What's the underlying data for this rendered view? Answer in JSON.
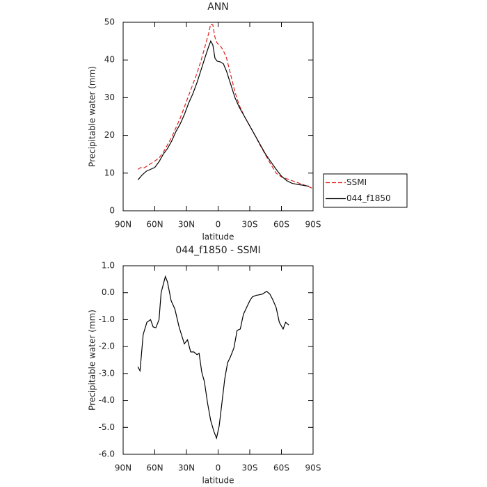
{
  "chart_data": [
    {
      "type": "line",
      "title": "ANN",
      "xlabel": "latitude",
      "ylabel": "Precipitable water (mm)",
      "xlim": [
        90,
        -90
      ],
      "xticks": [
        {
          "value": 90,
          "label": "90N"
        },
        {
          "value": 60,
          "label": "60N"
        },
        {
          "value": 30,
          "label": "30N"
        },
        0,
        {
          "value": -30,
          "label": "30S"
        },
        {
          "value": -60,
          "label": "60S"
        },
        {
          "value": -90,
          "label": "90S"
        }
      ],
      "ylim": [
        0,
        50
      ],
      "yticks": [
        0,
        10,
        20,
        30,
        40,
        50
      ],
      "legend": "right",
      "series": [
        {
          "name": "SSMI",
          "color": "#e0201c",
          "linestyle": "dashed",
          "x": [
            76,
            73,
            70,
            65,
            60,
            56,
            52,
            48,
            44,
            40,
            36,
            32,
            28,
            24,
            20,
            16,
            12,
            9,
            7,
            5,
            3,
            1,
            -2,
            -5,
            -8,
            -12,
            -16,
            -20,
            -25,
            -30,
            -35,
            -40,
            -45,
            -50,
            -55,
            -60,
            -65,
            -70,
            -75,
            -80,
            -85,
            -89
          ],
          "values": [
            11,
            11.5,
            11.4,
            12.3,
            13.2,
            14,
            15.5,
            17.5,
            19.5,
            22,
            24.5,
            27.5,
            30.5,
            33.5,
            36.5,
            40,
            44,
            47,
            49.5,
            49.3,
            46,
            44.5,
            43.8,
            42.5,
            40.5,
            36,
            31.5,
            28,
            25,
            22.5,
            20,
            17.3,
            14.8,
            12.3,
            10,
            9,
            8.5,
            8,
            7.5,
            7,
            6.5,
            6
          ]
        },
        {
          "name": "044_f1850",
          "color": "#000000",
          "linestyle": "solid",
          "x": [
            76,
            72,
            68,
            64,
            60,
            56,
            52,
            48,
            44,
            40,
            36,
            32,
            28,
            24,
            20,
            16,
            12,
            9,
            7,
            5,
            3,
            1,
            -2,
            -5,
            -8,
            -12,
            -16,
            -20,
            -25,
            -30,
            -35,
            -40,
            -45,
            -50,
            -55,
            -60,
            -65,
            -70,
            -75,
            -80,
            -86
          ],
          "values": [
            8.2,
            9.5,
            10.5,
            11,
            11.5,
            13,
            15,
            16.5,
            18.5,
            21,
            23,
            25.5,
            28.5,
            31,
            34,
            37.5,
            41,
            43.5,
            45,
            44,
            40.5,
            39.7,
            39.5,
            39,
            37,
            33.5,
            30,
            27.5,
            25,
            22.5,
            20,
            17.5,
            15,
            13,
            11,
            9.2,
            8,
            7.3,
            7,
            6.8,
            6.5
          ]
        }
      ]
    },
    {
      "type": "line",
      "title": "044_f1850 - SSMI",
      "xlabel": "latitude",
      "ylabel": "Precipitable water (mm)",
      "xlim": [
        90,
        -90
      ],
      "xticks": [
        {
          "value": 90,
          "label": "90N"
        },
        {
          "value": 60,
          "label": "60N"
        },
        {
          "value": 30,
          "label": "30N"
        },
        0,
        {
          "value": -30,
          "label": "30S"
        },
        {
          "value": -60,
          "label": "60S"
        },
        {
          "value": -90,
          "label": "90S"
        }
      ],
      "ylim": [
        -6,
        1
      ],
      "yticks": [
        {
          "value": -6,
          "label": "-6.0"
        },
        {
          "value": -5,
          "label": "-5.0"
        },
        {
          "value": -4,
          "label": "-4.0"
        },
        {
          "value": -3,
          "label": "-3.0"
        },
        {
          "value": -2,
          "label": "-2.0"
        },
        {
          "value": -1,
          "label": "-1.0"
        },
        {
          "value": 0,
          "label": "0.0"
        },
        {
          "value": 1,
          "label": "1.0"
        }
      ],
      "color": "#000000",
      "x": [
        76,
        74,
        71,
        67.5,
        64,
        61.6,
        59,
        56,
        54,
        50,
        48,
        44.5,
        41,
        37,
        32,
        29,
        26,
        23,
        20,
        18,
        15.5,
        13,
        10,
        7,
        4,
        1.5,
        -1,
        -3.6,
        -6.3,
        -9,
        -11.5,
        -15,
        -18,
        -21,
        -24,
        -27,
        -30,
        -32.6,
        -36,
        -38.6,
        -42,
        -46,
        -49,
        -51.7,
        -55,
        -58,
        -61.6,
        -64,
        -67
      ],
      "values": [
        -2.75,
        -2.9,
        -1.55,
        -1.1,
        -1.0,
        -1.27,
        -1.3,
        -1.0,
        0.0,
        0.6,
        0.4,
        -0.3,
        -0.6,
        -1.27,
        -1.9,
        -1.75,
        -2.2,
        -2.2,
        -2.3,
        -2.25,
        -2.95,
        -3.3,
        -4.1,
        -4.75,
        -5.15,
        -5.4,
        -4.95,
        -4.1,
        -3.2,
        -2.6,
        -2.4,
        -2.05,
        -1.4,
        -1.35,
        -0.8,
        -0.55,
        -0.3,
        -0.15,
        -0.1,
        -0.08,
        -0.05,
        0.05,
        -0.05,
        -0.25,
        -0.55,
        -1.1,
        -1.35,
        -1.1,
        -1.2
      ]
    }
  ]
}
